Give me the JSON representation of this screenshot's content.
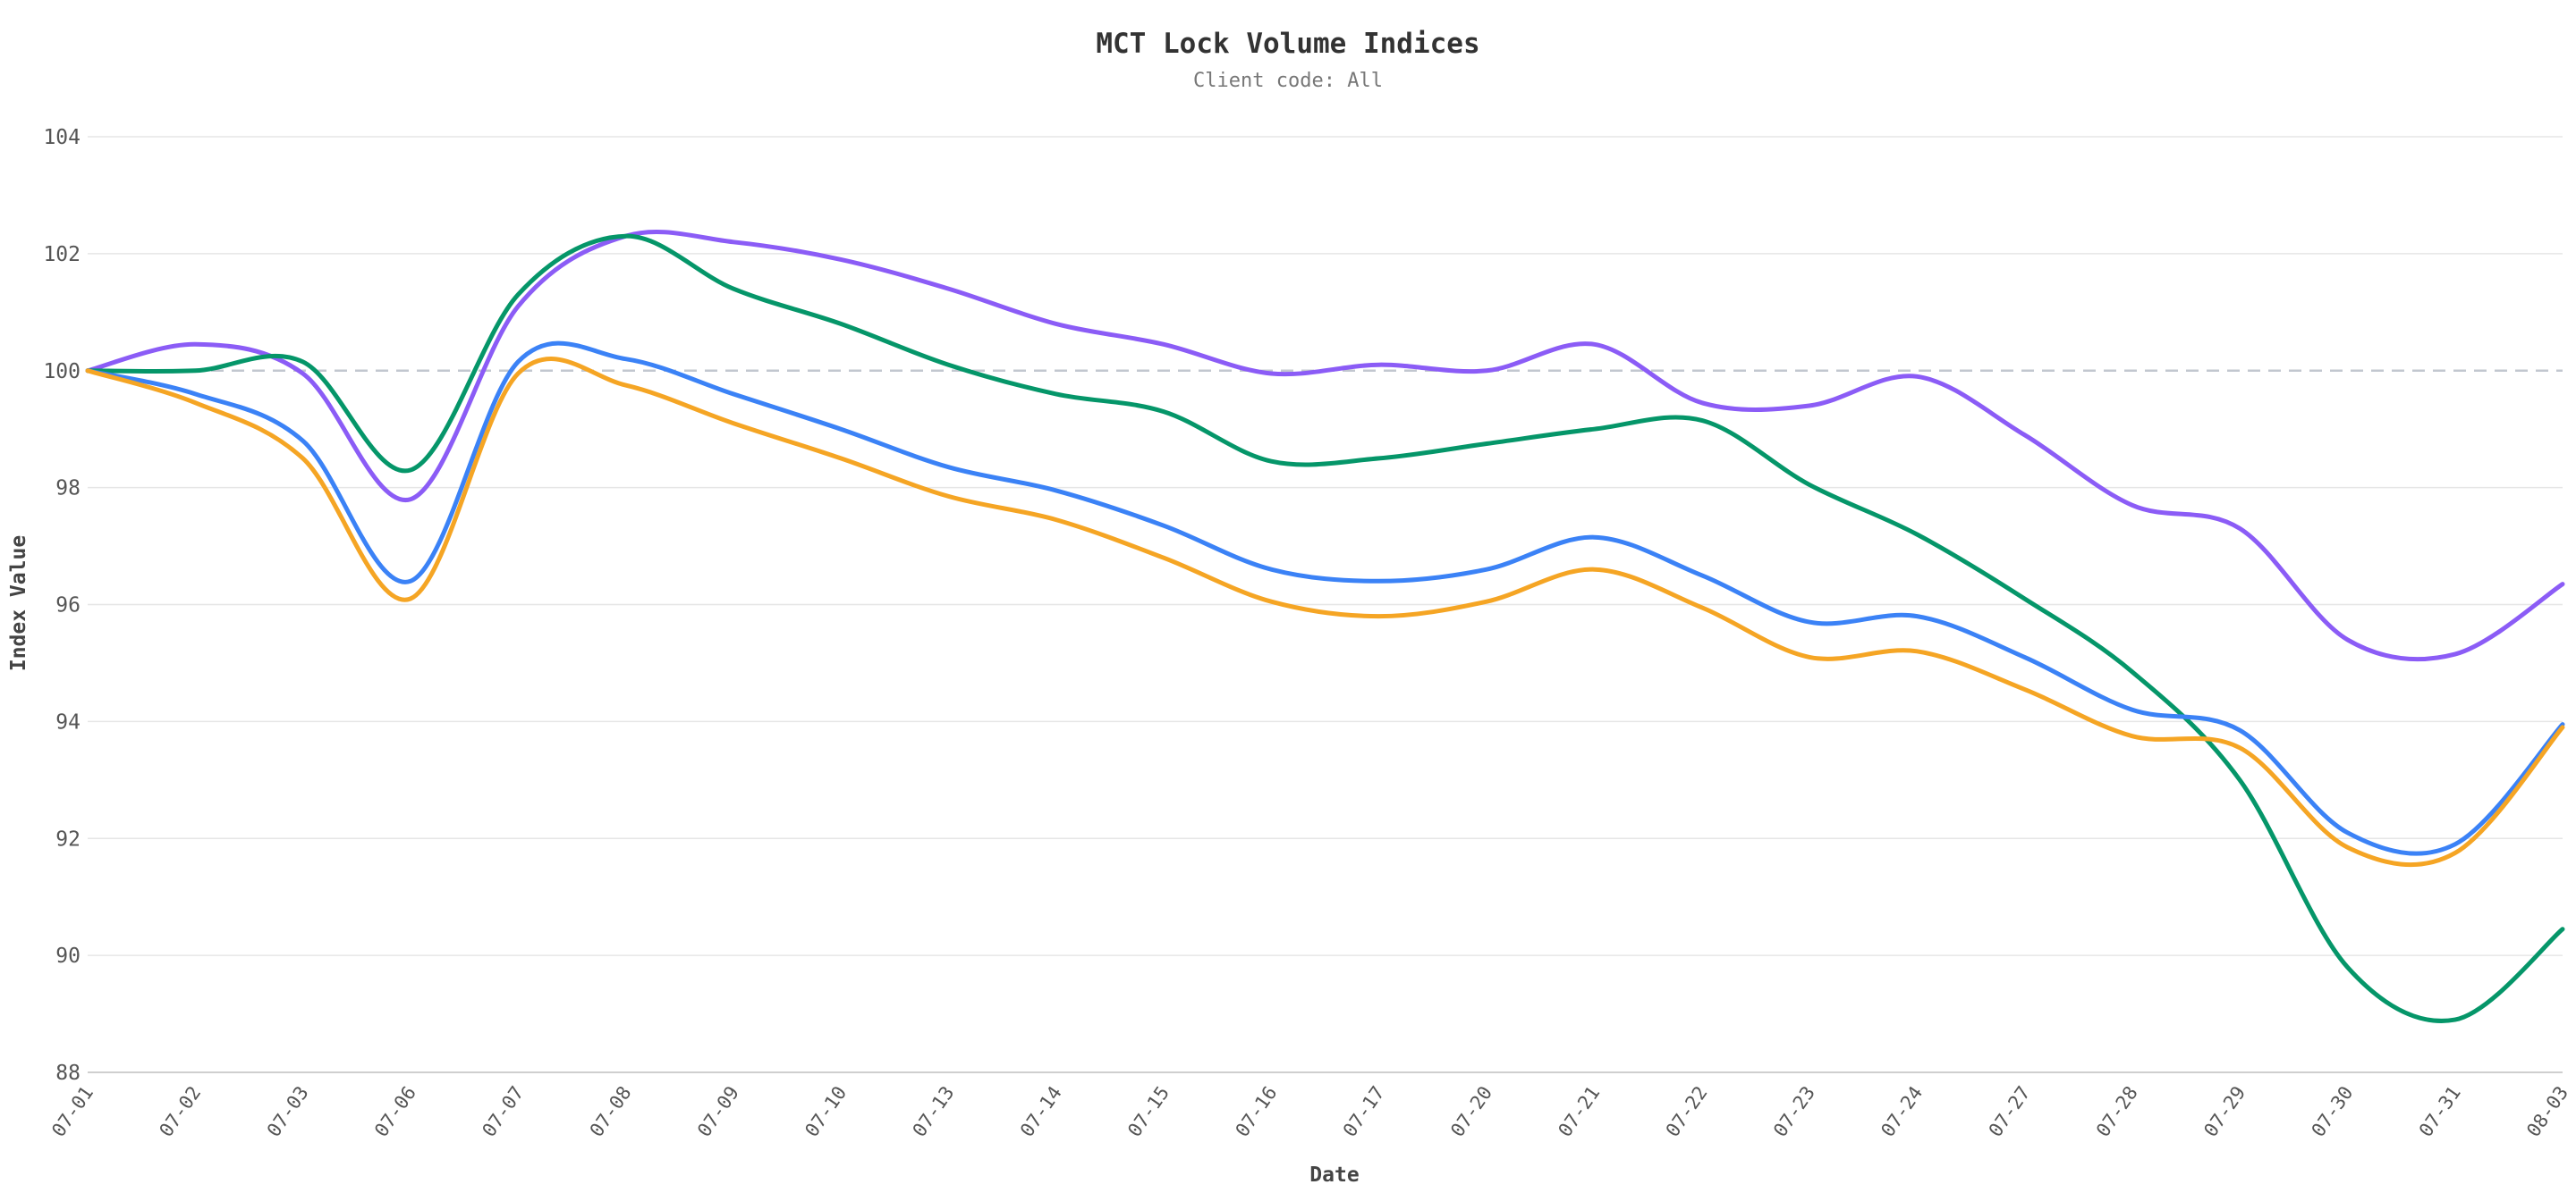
{
  "chart_data": {
    "type": "line",
    "title": "MCT Lock Volume Indices",
    "subtitle": "Client code: All",
    "xlabel": "Date",
    "ylabel": "Index Value",
    "ylim": [
      88,
      104
    ],
    "yticks": [
      "88",
      "90",
      "92",
      "94",
      "96",
      "98",
      "100",
      "102",
      "104"
    ],
    "baseline": 100,
    "grid": true,
    "legend": "none",
    "categories": [
      "07-01",
      "07-02",
      "07-03",
      "07-06",
      "07-07",
      "07-08",
      "07-09",
      "07-10",
      "07-13",
      "07-14",
      "07-15",
      "07-16",
      "07-17",
      "07-20",
      "07-21",
      "07-22",
      "07-23",
      "07-24",
      "07-27",
      "07-28",
      "07-29",
      "07-30",
      "07-31",
      "08-03"
    ],
    "series": [
      {
        "color": "#8b5cf6",
        "values": [
          100.0,
          100.45,
          99.95,
          97.8,
          101.1,
          102.3,
          102.2,
          101.9,
          101.4,
          100.8,
          100.45,
          99.95,
          100.1,
          100.0,
          100.45,
          99.45,
          99.4,
          99.9,
          98.9,
          97.7,
          97.3,
          95.4,
          95.15,
          96.35
        ]
      },
      {
        "color": "#059669",
        "values": [
          100.0,
          100.0,
          100.15,
          98.3,
          101.3,
          102.3,
          101.4,
          100.8,
          100.1,
          99.6,
          99.3,
          98.45,
          98.5,
          98.75,
          99.0,
          99.15,
          98.05,
          97.2,
          96.1,
          94.85,
          93.0,
          89.8,
          88.9,
          90.45
        ]
      },
      {
        "color": "#3b82f6",
        "values": [
          100.0,
          99.6,
          98.8,
          96.4,
          100.15,
          100.2,
          99.6,
          99.0,
          98.35,
          97.95,
          97.35,
          96.6,
          96.4,
          96.6,
          97.15,
          96.5,
          95.7,
          95.8,
          95.1,
          94.2,
          93.85,
          92.1,
          91.9,
          93.95
        ]
      },
      {
        "color": "#f5a524",
        "values": [
          100.0,
          99.45,
          98.5,
          96.1,
          99.95,
          99.75,
          99.1,
          98.5,
          97.85,
          97.45,
          96.8,
          96.05,
          95.8,
          96.05,
          96.6,
          95.95,
          95.1,
          95.2,
          94.55,
          93.75,
          93.55,
          91.85,
          91.75,
          93.9
        ]
      }
    ]
  }
}
